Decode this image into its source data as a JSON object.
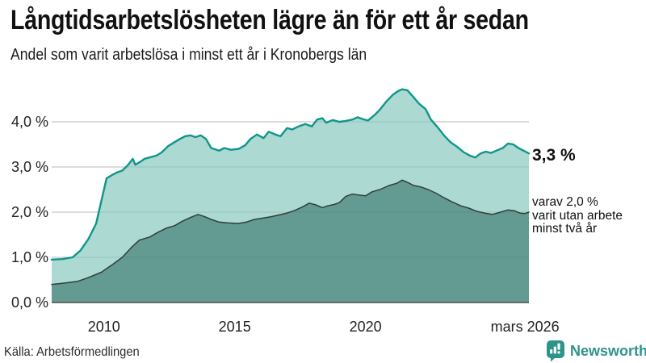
{
  "chart_data": {
    "type": "area",
    "title": "Långtidsarbetslösheten lägre än för ett år sedan",
    "subtitle": "Andel som varit arbetslösa i minst ett år i Kronobergs län",
    "x_domain": [
      2008,
      2026.25
    ],
    "ylim": [
      0,
      4.8
    ],
    "grid": true,
    "legend_position": "none",
    "yticks": [
      {
        "value": 0,
        "label": "0,0 %"
      },
      {
        "value": 1,
        "label": "1,0 %"
      },
      {
        "value": 2,
        "label": "2,0 %"
      },
      {
        "value": 3,
        "label": "3,0 %"
      },
      {
        "value": 4,
        "label": "4,0 %"
      }
    ],
    "xticks": [
      {
        "value": 2010,
        "label": "2010"
      },
      {
        "value": 2015,
        "label": "2015"
      },
      {
        "value": 2020,
        "label": "2020"
      },
      {
        "value": 2026.1,
        "label": "mars 2026"
      }
    ],
    "series": [
      {
        "name": "Arbetslösa minst ett år",
        "line_color": "#0e9689",
        "fill_color": "#9ed2ca",
        "fill_opacity": 0.85,
        "line_width": 2.4,
        "latest_value": 3.3,
        "points": [
          [
            2008.0,
            0.95
          ],
          [
            2008.4,
            0.96
          ],
          [
            2008.8,
            1.0
          ],
          [
            2009.1,
            1.15
          ],
          [
            2009.4,
            1.4
          ],
          [
            2009.7,
            1.75
          ],
          [
            2009.9,
            2.25
          ],
          [
            2010.1,
            2.75
          ],
          [
            2010.3,
            2.82
          ],
          [
            2010.5,
            2.88
          ],
          [
            2010.7,
            2.92
          ],
          [
            2010.9,
            3.03
          ],
          [
            2011.1,
            3.18
          ],
          [
            2011.2,
            3.05
          ],
          [
            2011.4,
            3.12
          ],
          [
            2011.55,
            3.18
          ],
          [
            2011.8,
            3.22
          ],
          [
            2012.0,
            3.25
          ],
          [
            2012.2,
            3.32
          ],
          [
            2012.45,
            3.46
          ],
          [
            2012.7,
            3.55
          ],
          [
            2012.9,
            3.62
          ],
          [
            2013.1,
            3.68
          ],
          [
            2013.3,
            3.7
          ],
          [
            2013.5,
            3.66
          ],
          [
            2013.7,
            3.7
          ],
          [
            2013.9,
            3.62
          ],
          [
            2014.1,
            3.42
          ],
          [
            2014.4,
            3.36
          ],
          [
            2014.6,
            3.42
          ],
          [
            2014.85,
            3.38
          ],
          [
            2015.15,
            3.4
          ],
          [
            2015.4,
            3.48
          ],
          [
            2015.6,
            3.62
          ],
          [
            2015.85,
            3.72
          ],
          [
            2016.1,
            3.64
          ],
          [
            2016.3,
            3.78
          ],
          [
            2016.55,
            3.72
          ],
          [
            2016.75,
            3.68
          ],
          [
            2017.0,
            3.86
          ],
          [
            2017.2,
            3.83
          ],
          [
            2017.45,
            3.9
          ],
          [
            2017.7,
            3.95
          ],
          [
            2017.95,
            3.9
          ],
          [
            2018.15,
            4.05
          ],
          [
            2018.35,
            4.08
          ],
          [
            2018.5,
            3.98
          ],
          [
            2018.75,
            4.04
          ],
          [
            2019.0,
            4.0
          ],
          [
            2019.25,
            4.02
          ],
          [
            2019.5,
            4.05
          ],
          [
            2019.7,
            4.1
          ],
          [
            2019.95,
            4.05
          ],
          [
            2020.1,
            4.03
          ],
          [
            2020.35,
            4.15
          ],
          [
            2020.55,
            4.27
          ],
          [
            2020.8,
            4.45
          ],
          [
            2021.05,
            4.6
          ],
          [
            2021.25,
            4.68
          ],
          [
            2021.4,
            4.72
          ],
          [
            2021.6,
            4.7
          ],
          [
            2021.8,
            4.57
          ],
          [
            2022.05,
            4.4
          ],
          [
            2022.3,
            4.28
          ],
          [
            2022.5,
            4.05
          ],
          [
            2022.8,
            3.85
          ],
          [
            2023.0,
            3.7
          ],
          [
            2023.25,
            3.55
          ],
          [
            2023.5,
            3.45
          ],
          [
            2023.75,
            3.33
          ],
          [
            2024.0,
            3.25
          ],
          [
            2024.2,
            3.21
          ],
          [
            2024.4,
            3.3
          ],
          [
            2024.6,
            3.34
          ],
          [
            2024.8,
            3.31
          ],
          [
            2025.0,
            3.36
          ],
          [
            2025.25,
            3.42
          ],
          [
            2025.45,
            3.52
          ],
          [
            2025.65,
            3.5
          ],
          [
            2025.85,
            3.42
          ],
          [
            2026.05,
            3.36
          ],
          [
            2026.25,
            3.3
          ]
        ]
      },
      {
        "name": "Arbetslösa minst två år",
        "line_color": "#303f3c",
        "fill_color": "#5e948d",
        "fill_opacity": 0.93,
        "line_width": 1.5,
        "latest_value": 2.0,
        "points": [
          [
            2008.0,
            0.4
          ],
          [
            2008.5,
            0.43
          ],
          [
            2009.0,
            0.47
          ],
          [
            2009.4,
            0.55
          ],
          [
            2009.9,
            0.67
          ],
          [
            2010.35,
            0.85
          ],
          [
            2010.7,
            1.0
          ],
          [
            2011.05,
            1.22
          ],
          [
            2011.35,
            1.38
          ],
          [
            2011.75,
            1.45
          ],
          [
            2012.05,
            1.55
          ],
          [
            2012.4,
            1.65
          ],
          [
            2012.7,
            1.7
          ],
          [
            2013.0,
            1.8
          ],
          [
            2013.3,
            1.88
          ],
          [
            2013.6,
            1.95
          ],
          [
            2013.85,
            1.9
          ],
          [
            2014.1,
            1.84
          ],
          [
            2014.4,
            1.78
          ],
          [
            2014.75,
            1.76
          ],
          [
            2015.15,
            1.75
          ],
          [
            2015.45,
            1.78
          ],
          [
            2015.75,
            1.84
          ],
          [
            2016.1,
            1.87
          ],
          [
            2016.4,
            1.9
          ],
          [
            2016.7,
            1.94
          ],
          [
            2017.0,
            1.98
          ],
          [
            2017.3,
            2.04
          ],
          [
            2017.6,
            2.12
          ],
          [
            2017.85,
            2.2
          ],
          [
            2018.1,
            2.16
          ],
          [
            2018.35,
            2.1
          ],
          [
            2018.55,
            2.14
          ],
          [
            2018.8,
            2.17
          ],
          [
            2019.0,
            2.21
          ],
          [
            2019.25,
            2.35
          ],
          [
            2019.5,
            2.4
          ],
          [
            2019.75,
            2.38
          ],
          [
            2020.0,
            2.36
          ],
          [
            2020.25,
            2.45
          ],
          [
            2020.55,
            2.5
          ],
          [
            2020.9,
            2.59
          ],
          [
            2021.2,
            2.64
          ],
          [
            2021.4,
            2.71
          ],
          [
            2021.6,
            2.66
          ],
          [
            2021.85,
            2.59
          ],
          [
            2022.1,
            2.56
          ],
          [
            2022.4,
            2.5
          ],
          [
            2022.7,
            2.42
          ],
          [
            2023.0,
            2.32
          ],
          [
            2023.3,
            2.23
          ],
          [
            2023.65,
            2.14
          ],
          [
            2023.95,
            2.09
          ],
          [
            2024.25,
            2.02
          ],
          [
            2024.55,
            1.98
          ],
          [
            2024.85,
            1.95
          ],
          [
            2025.1,
            1.99
          ],
          [
            2025.45,
            2.05
          ],
          [
            2025.7,
            2.03
          ],
          [
            2025.9,
            1.98
          ],
          [
            2026.1,
            1.97
          ],
          [
            2026.25,
            2.0
          ]
        ]
      }
    ],
    "annotations": {
      "latest_label": "3,3 %",
      "secondary_lines": [
        "varav 2,0 %",
        "varit utan arbete",
        "minst två år"
      ]
    },
    "colors": {
      "grid": "#d9d9d9",
      "baseline": "#4d4d4d",
      "tick_text": "#222222"
    }
  },
  "footer": {
    "source": "Källa: Arbetsförmedlingen",
    "logo_text": "Newsworthy",
    "logo_color": "#2d948b"
  }
}
